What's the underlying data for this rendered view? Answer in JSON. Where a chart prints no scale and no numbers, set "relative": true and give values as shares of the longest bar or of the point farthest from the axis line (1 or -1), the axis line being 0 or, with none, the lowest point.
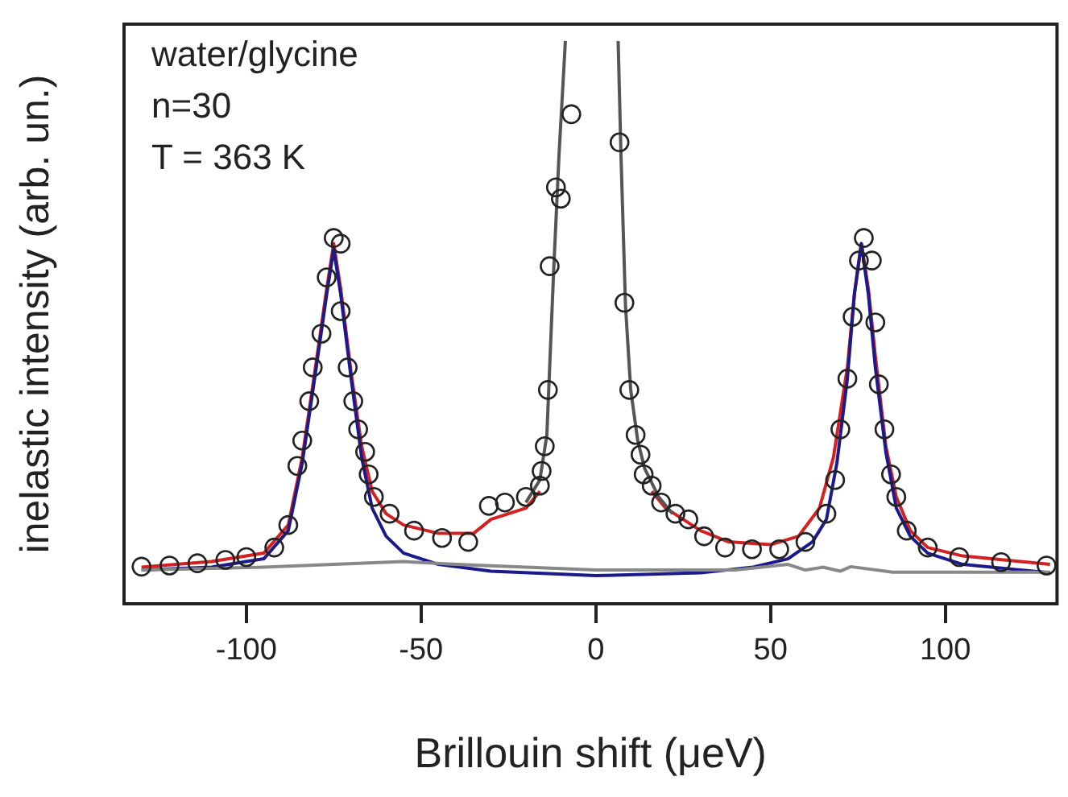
{
  "chart_data": {
    "type": "scatter",
    "relative": true,
    "xlabel": "Brillouin shift (μeV)",
    "ylabel": "inelastic intensity (arb. un.)",
    "annotations": [
      "water/glycine",
      "n=30",
      "T = 363 K"
    ],
    "xlim": [
      -135,
      132
    ],
    "xticks": [
      -100,
      -50,
      0,
      50,
      100
    ],
    "tick_labels": "x",
    "grid": false,
    "legend": false,
    "series": [
      {
        "type": "line",
        "marker": "none",
        "line_style": "solid",
        "color": "#888888",
        "x": [
          -130,
          -95,
          -55,
          -40,
          0,
          40,
          55,
          60,
          65,
          70,
          73,
          85,
          130
        ],
        "values": [
          0.06,
          0.065,
          0.075,
          0.07,
          0.06,
          0.06,
          0.07,
          0.06,
          0.065,
          0.058,
          0.066,
          0.056,
          0.056
        ]
      },
      {
        "type": "line",
        "marker": "none",
        "line_style": "solid",
        "color": "#555555",
        "x": [
          -20,
          -16,
          -14,
          -12,
          -10.5,
          -8.7,
          0,
          6.4,
          7.2,
          8.5,
          10,
          12,
          14,
          18,
          22
        ],
        "values": [
          0.18,
          0.22,
          0.3,
          0.6,
          0.8,
          1.0,
          null,
          1.0,
          0.8,
          0.53,
          0.38,
          0.29,
          0.24,
          0.19,
          0.16
        ]
      },
      {
        "type": "line",
        "marker": "none",
        "line_style": "solid",
        "color": "#1a1a8c",
        "x": [
          -130,
          -110,
          -95,
          -88,
          -84,
          -80,
          -77,
          -75,
          -73,
          -70,
          -67,
          -64,
          -60,
          -55,
          -45,
          -30,
          0,
          30,
          45,
          55,
          62,
          66,
          69,
          72,
          74,
          76,
          78,
          80,
          83,
          86,
          90,
          95,
          105,
          130
        ],
        "values": [
          0.06,
          0.065,
          0.08,
          0.13,
          0.25,
          0.42,
          0.55,
          0.63,
          0.55,
          0.4,
          0.26,
          0.17,
          0.12,
          0.09,
          0.07,
          0.058,
          0.05,
          0.055,
          0.065,
          0.08,
          0.11,
          0.15,
          0.25,
          0.4,
          0.55,
          0.64,
          0.55,
          0.42,
          0.27,
          0.17,
          0.12,
          0.09,
          0.07,
          0.055
        ]
      },
      {
        "type": "line",
        "marker": "none",
        "line_style": "solid",
        "color": "#d42020",
        "x": [
          -130,
          -110,
          -95,
          -88,
          -84,
          -80,
          -77,
          -75,
          -73,
          -70,
          -67,
          -64,
          -60,
          -55,
          -45,
          -35,
          -30,
          -25,
          -20,
          -16,
          0,
          16,
          20,
          25,
          30,
          38,
          50,
          58,
          64,
          68,
          72,
          74,
          76,
          78,
          80,
          83,
          86,
          90,
          95,
          105,
          130
        ],
        "values": [
          0.065,
          0.075,
          0.09,
          0.14,
          0.26,
          0.43,
          0.56,
          0.64,
          0.56,
          0.41,
          0.28,
          0.2,
          0.16,
          0.14,
          0.125,
          0.125,
          0.15,
          0.16,
          0.17,
          0.2,
          null,
          0.2,
          0.17,
          0.15,
          0.13,
          0.11,
          0.105,
          0.12,
          0.17,
          0.26,
          0.42,
          0.55,
          0.64,
          0.56,
          0.44,
          0.28,
          0.19,
          0.13,
          0.1,
          0.085,
          0.07
        ]
      },
      {
        "type": "scatter",
        "marker": "circle",
        "color": "#222222",
        "x": [
          -130,
          -122,
          -114,
          -106,
          -100,
          -92,
          -88,
          -85.4,
          -84,
          -82,
          -81,
          -78.5,
          -77,
          -75,
          -73,
          -73,
          -71,
          -69.4,
          -68,
          -66,
          -65,
          -63.5,
          -59,
          -52,
          -44,
          -36.5,
          -30.6,
          -26,
          -20,
          -16,
          -15.5,
          -14.6,
          -13.7,
          -13.2,
          -11.4,
          -10,
          -7,
          6.8,
          8.2,
          9.6,
          11.4,
          12.8,
          13.7,
          16,
          18.7,
          22.8,
          26.5,
          31,
          37,
          44.7,
          52.5,
          60,
          66,
          68.5,
          70,
          72,
          73.5,
          75.3,
          76.7,
          79,
          80,
          81,
          82.6,
          84.5,
          86,
          89,
          95,
          104,
          116,
          129
        ],
        "values": [
          0.066,
          0.068,
          0.072,
          0.078,
          0.083,
          0.1,
          0.14,
          0.245,
          0.29,
          0.36,
          0.42,
          0.48,
          0.58,
          0.65,
          0.64,
          0.52,
          0.42,
          0.36,
          0.31,
          0.27,
          0.23,
          0.19,
          0.16,
          0.13,
          0.117,
          0.11,
          0.174,
          0.18,
          0.19,
          0.21,
          0.236,
          0.28,
          0.38,
          0.6,
          0.74,
          0.72,
          0.87,
          0.82,
          0.535,
          0.38,
          0.3,
          0.265,
          0.23,
          0.21,
          0.18,
          0.16,
          0.15,
          0.12,
          0.1,
          0.097,
          0.097,
          0.11,
          0.16,
          0.22,
          0.31,
          0.4,
          0.51,
          0.61,
          0.65,
          0.61,
          0.5,
          0.39,
          0.31,
          0.23,
          0.19,
          0.13,
          0.1,
          0.083,
          0.074,
          0.068
        ]
      }
    ]
  }
}
